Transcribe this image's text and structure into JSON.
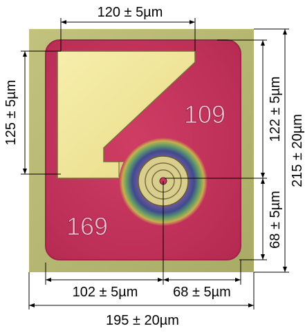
{
  "dimensions": {
    "top_width": "120 ± 5µm",
    "left_height": "125 ± 5µm",
    "right_upper_height": "122 ± 5µm",
    "right_lower_height": "68 ± 5µm",
    "overall_height": "215 ± 20µm",
    "bottom_left_width": "102 ± 5µm",
    "bottom_right_width": "68 ± 5µm",
    "overall_width": "195 ± 20µm"
  },
  "chip": {
    "label_upper_right": "109",
    "label_lower_left": "169"
  },
  "colors": {
    "substrate": "#b8b872",
    "die": "#c8345c",
    "pad": "#f0e69a",
    "engraving": "#f3c0cf",
    "dimension_lines": "#000000"
  }
}
